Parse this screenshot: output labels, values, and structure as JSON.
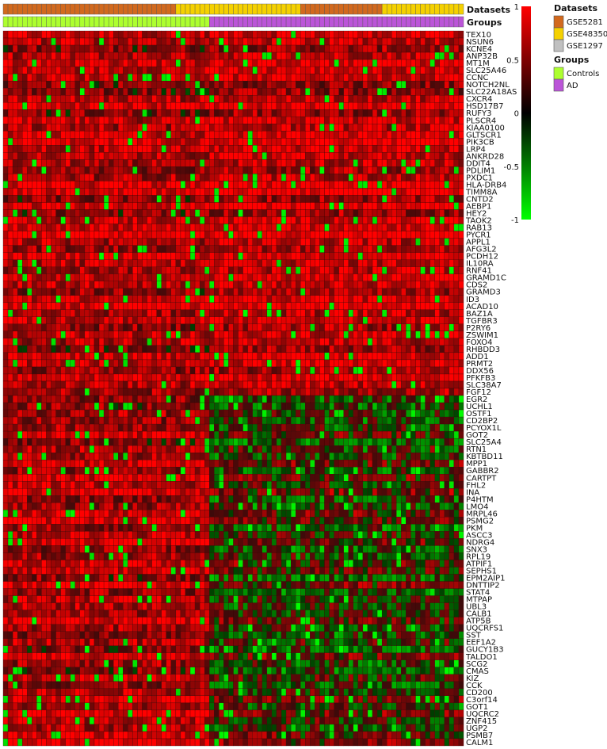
{
  "chart_data": {
    "type": "heatmap",
    "title": "",
    "xlabel": "",
    "ylabel": "",
    "color_scale": {
      "range": [
        -1,
        1
      ],
      "ticks": [
        1,
        0.5,
        0,
        -0.5,
        -1
      ],
      "tick_labels": [
        "1",
        "0.5",
        "0",
        "-0.5",
        "-1"
      ],
      "high_color": "#ff0000",
      "mid_color": "#000000",
      "low_color": "#00ff00"
    },
    "columns": {
      "count": 96,
      "dataset_segments": [
        {
          "name": "GSE5281",
          "count": 36
        },
        {
          "name": "GSE48350",
          "count": 26
        },
        {
          "name": "GSE5281",
          "count": 17
        },
        {
          "name": "GSE48350",
          "count": 17
        }
      ],
      "group_segments": [
        {
          "name": "Controls",
          "count": 43
        },
        {
          "name": "AD",
          "count": 53
        }
      ]
    },
    "annotation_tracks": [
      {
        "label": "Datasets"
      },
      {
        "label": "Groups"
      }
    ],
    "legends": [
      {
        "title": "Datasets",
        "entries": [
          {
            "label": "GSE5281",
            "color": "#d2691e"
          },
          {
            "label": "GSE48350",
            "color": "#f5d100"
          },
          {
            "label": "GSE1297",
            "color": "#c0c0c0"
          }
        ]
      },
      {
        "title": "Groups",
        "entries": [
          {
            "label": "Controls",
            "color": "#adff2f"
          },
          {
            "label": "AD",
            "color": "#bb55d8"
          }
        ]
      }
    ],
    "genes": [
      "TEX10",
      "NSUN6",
      "KCNE4",
      "ANP32B",
      "MT1M",
      "SLC25A46",
      "CCNC",
      "NOTCH2NL",
      "SLC22A18AS",
      "CXCR4",
      "HSD17B7",
      "RUFY3",
      "PLSCR4",
      "KIAA0100",
      "GLTSCR1",
      "PIK3CB",
      "LRP4",
      "ANKRD28",
      "DDIT4",
      "PDLIM1",
      "PXDC1",
      "HLA-DRB4",
      "TIMM8A",
      "CNTD2",
      "AEBP1",
      "HEY2",
      "TAOK2",
      "RAB13",
      "PYCR1",
      "APPL1",
      "AFG3L2",
      "PCDH12",
      "IL10RA",
      "RNF41",
      "GRAMD1C",
      "CDS2",
      "GRAMD3",
      "ID3",
      "ACAD10",
      "BAZ1A",
      "TGFBR3",
      "P2RY6",
      "ZSWIM1",
      "FOXO4",
      "RHBDD3",
      "ADD1",
      "PRMT2",
      "DDX56",
      "PFKFB3",
      "SLC38A7",
      "FGF12",
      "EGR2",
      "UCHL1",
      "OSTF1",
      "CD2BP2",
      "PCYOX1L",
      "GOT2",
      "SLC25A4",
      "RTN1",
      "KBTBD11",
      "MPP1",
      "GABBR2",
      "CARTPT",
      "FHL2",
      "INA",
      "P4HTM",
      "LMO4",
      "MRPL46",
      "PSMG2",
      "PKM",
      "ASCC3",
      "NDRG4",
      "SNX3",
      "RPL19",
      "ATPIF1",
      "SEPHS1",
      "EPM2AIP1",
      "DNTTIP2",
      "STAT4",
      "MTPAP",
      "UBL3",
      "CALB1",
      "ATP5B",
      "UQCRFS1",
      "SST",
      "EEF1A2",
      "GUCY1B3",
      "TALDO1",
      "SCG2",
      "CMAS",
      "KIZ",
      "CCK",
      "CD200",
      "C3orf14",
      "GOT1",
      "UQCRC2",
      "ZNF415",
      "UGP2",
      "PSMB7",
      "CALM1"
    ],
    "values_note": ""
  }
}
